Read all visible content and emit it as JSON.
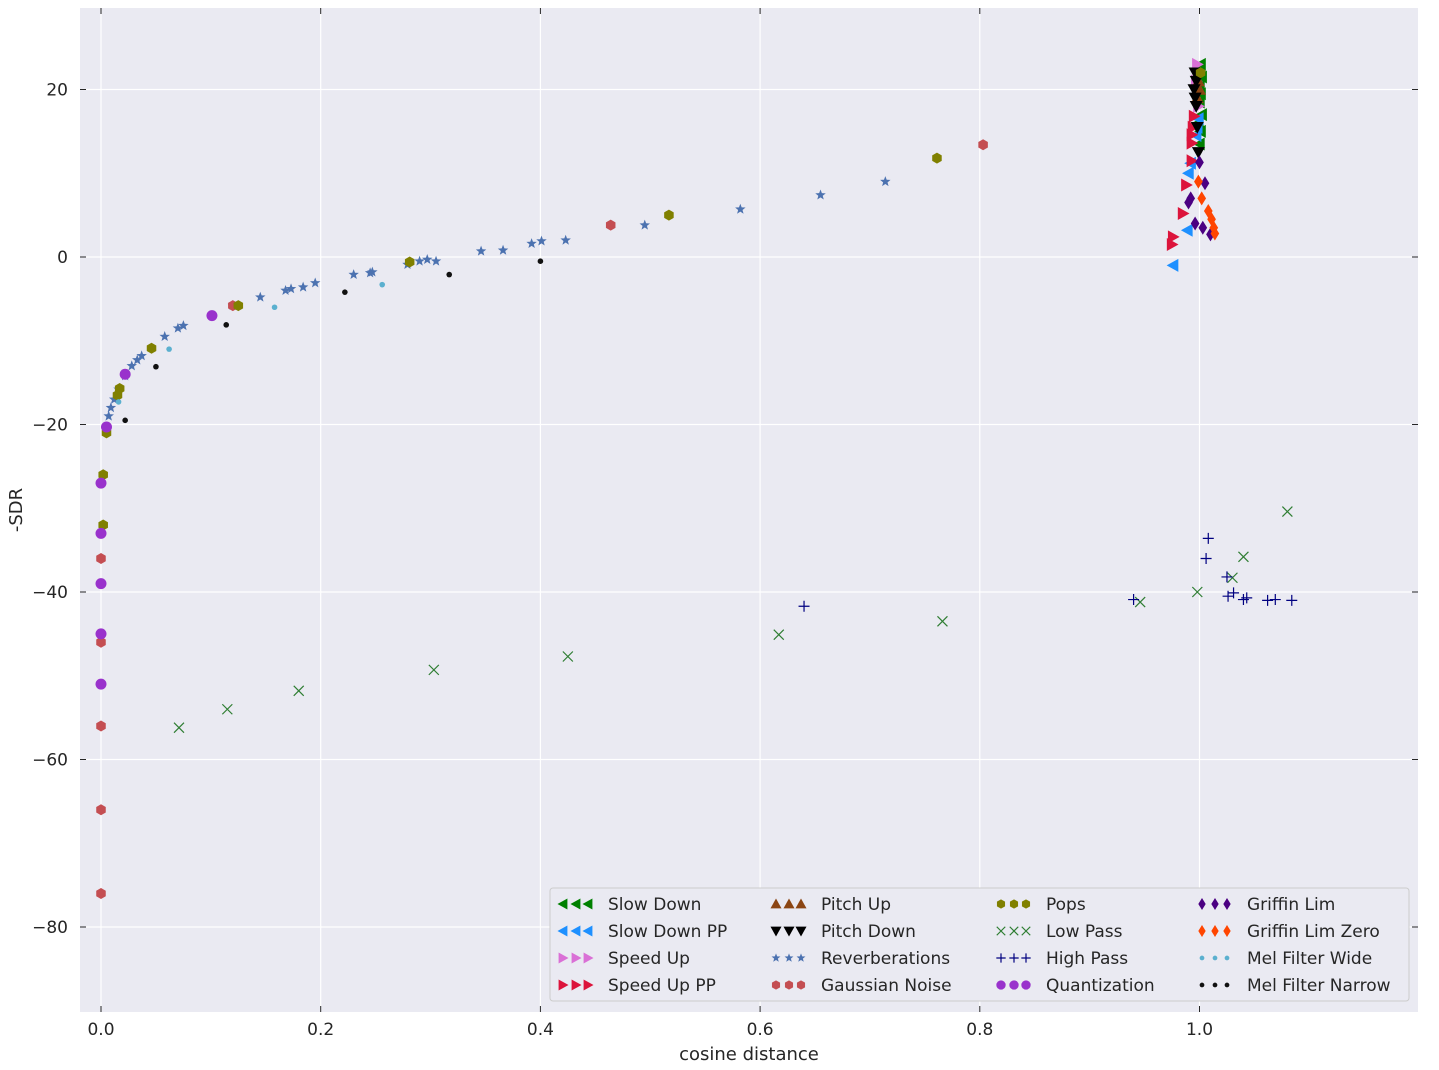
{
  "chart_data": {
    "type": "scatter",
    "xlabel": "cosine distance",
    "ylabel": "-SDR",
    "xlim": [
      -0.02,
      1.2
    ],
    "ylim": [
      -90,
      30
    ],
    "xticks": [
      0.0,
      0.2,
      0.4,
      0.6,
      0.8,
      1.0
    ],
    "xtick_labels": [
      "0.0",
      "0.2",
      "0.4",
      "0.6",
      "0.8",
      "1.0"
    ],
    "yticks": [
      20,
      0,
      -20,
      -40,
      -60,
      -80
    ],
    "ytick_labels": [
      "20",
      "0",
      "−20",
      "−40",
      "−60",
      "−80"
    ],
    "grid": true,
    "background_color": "#eaeaf2",
    "legend_position": "lower-right",
    "series": [
      {
        "name": "Slow Down",
        "marker": "triangle-left",
        "color": "#008000",
        "points": [
          [
            1.001,
            23
          ],
          [
            1.0,
            22.5
          ],
          [
            1.002,
            21.5
          ],
          [
            1.0,
            20.5
          ],
          [
            1.001,
            19.5
          ],
          [
            1.0,
            18.5
          ],
          [
            1.002,
            17
          ],
          [
            0.999,
            16
          ],
          [
            1.001,
            15
          ],
          [
            1.0,
            13.5
          ]
        ]
      },
      {
        "name": "Slow Down PP",
        "marker": "triangle-left",
        "color": "#1e90ff",
        "points": [
          [
            0.976,
            -1
          ],
          [
            0.989,
            3.2
          ],
          [
            0.99,
            10
          ],
          [
            0.992,
            11.2
          ],
          [
            0.997,
            14.5
          ],
          [
            0.998,
            15.5
          ],
          [
            0.999,
            16.5
          ]
        ]
      },
      {
        "name": "Speed Up",
        "marker": "triangle-right",
        "color": "#da70d6",
        "points": [
          [
            0.998,
            23
          ],
          [
            0.999,
            22
          ],
          [
            0.997,
            21
          ],
          [
            0.998,
            19.8
          ],
          [
            0.999,
            18
          ]
        ]
      },
      {
        "name": "Speed Up PP",
        "marker": "triangle-right",
        "color": "#dc143c",
        "points": [
          [
            0.975,
            1.5
          ],
          [
            0.976,
            2.4
          ],
          [
            0.985,
            5.2
          ],
          [
            0.988,
            8.6
          ],
          [
            0.993,
            11.5
          ],
          [
            0.993,
            13.6
          ],
          [
            0.993,
            14.6
          ],
          [
            0.994,
            15.5
          ],
          [
            0.995,
            16.8
          ]
        ]
      },
      {
        "name": "Pitch Up",
        "marker": "triangle-up",
        "color": "#8b4513",
        "points": [
          [
            0.999,
            21
          ],
          [
            1.0,
            20
          ],
          [
            0.998,
            19
          ]
        ]
      },
      {
        "name": "Pitch Down",
        "marker": "triangle-down",
        "color": "#000000",
        "points": [
          [
            0.996,
            22
          ],
          [
            0.997,
            21
          ],
          [
            0.995,
            20
          ],
          [
            0.996,
            19
          ],
          [
            0.997,
            18
          ],
          [
            0.998,
            15.5
          ],
          [
            0.999,
            12.5
          ]
        ]
      },
      {
        "name": "Reverberations",
        "marker": "star",
        "color": "#4c72b0",
        "points": [
          [
            0.007,
            -19
          ],
          [
            0.009,
            -18
          ],
          [
            0.012,
            -17
          ],
          [
            0.016,
            -15.8
          ],
          [
            0.022,
            -14.2
          ],
          [
            0.028,
            -13
          ],
          [
            0.033,
            -12.3
          ],
          [
            0.037,
            -11.8
          ],
          [
            0.058,
            -9.5
          ],
          [
            0.07,
            -8.5
          ],
          [
            0.075,
            -8.2
          ],
          [
            0.12,
            -5.8
          ],
          [
            0.145,
            -4.8
          ],
          [
            0.168,
            -4
          ],
          [
            0.173,
            -3.8
          ],
          [
            0.184,
            -3.6
          ],
          [
            0.195,
            -3.1
          ],
          [
            0.23,
            -2.1
          ],
          [
            0.245,
            -1.9
          ],
          [
            0.247,
            -1.8
          ],
          [
            0.279,
            -0.9
          ],
          [
            0.29,
            -0.5
          ],
          [
            0.297,
            -0.3
          ],
          [
            0.305,
            -0.5
          ],
          [
            0.346,
            0.7
          ],
          [
            0.366,
            0.8
          ],
          [
            0.392,
            1.6
          ],
          [
            0.401,
            1.9
          ],
          [
            0.423,
            2
          ],
          [
            0.495,
            3.8
          ],
          [
            0.582,
            5.7
          ],
          [
            0.655,
            7.4
          ],
          [
            0.714,
            9
          ]
        ]
      },
      {
        "name": "Gaussian Noise",
        "marker": "hexagon",
        "color": "#c44e52",
        "points": [
          [
            0.0,
            -76
          ],
          [
            0.0,
            -66
          ],
          [
            0.0,
            -56
          ],
          [
            0.0,
            -46
          ],
          [
            0.0,
            -36
          ],
          [
            0.12,
            -5.8
          ],
          [
            0.464,
            3.8
          ],
          [
            0.803,
            13.4
          ]
        ]
      },
      {
        "name": "Pops",
        "marker": "hexagon",
        "color": "#808000",
        "points": [
          [
            0.002,
            -32
          ],
          [
            0.002,
            -26
          ],
          [
            0.005,
            -21
          ],
          [
            0.015,
            -16.5
          ],
          [
            0.017,
            -15.7
          ],
          [
            0.046,
            -10.9
          ],
          [
            0.125,
            -5.8
          ],
          [
            0.281,
            -0.6
          ],
          [
            0.517,
            5
          ],
          [
            0.761,
            11.8
          ],
          [
            1.001,
            22
          ]
        ]
      },
      {
        "name": "Low Pass",
        "marker": "x",
        "color": "#2e7d32",
        "points": [
          [
            0.071,
            -56.2
          ],
          [
            0.115,
            -54
          ],
          [
            0.18,
            -51.8
          ],
          [
            0.303,
            -49.3
          ],
          [
            0.425,
            -47.7
          ],
          [
            0.617,
            -45.1
          ],
          [
            0.766,
            -43.5
          ],
          [
            0.946,
            -41.2
          ],
          [
            0.998,
            -40
          ],
          [
            1.03,
            -38.3
          ],
          [
            1.04,
            -35.8
          ],
          [
            1.08,
            -30.4
          ]
        ]
      },
      {
        "name": "High Pass",
        "marker": "plus",
        "color": "#000080",
        "points": [
          [
            0.64,
            -41.7
          ],
          [
            0.94,
            -40.9
          ],
          [
            1.006,
            -36
          ],
          [
            1.008,
            -33.6
          ],
          [
            1.025,
            -38.2
          ],
          [
            1.026,
            -40.5
          ],
          [
            1.031,
            -40.1
          ],
          [
            1.04,
            -40.9
          ],
          [
            1.043,
            -40.7
          ],
          [
            1.062,
            -41
          ],
          [
            1.069,
            -40.9
          ],
          [
            1.084,
            -41
          ]
        ]
      },
      {
        "name": "Quantization",
        "marker": "circle",
        "color": "#9932cc",
        "points": [
          [
            0.0,
            -51
          ],
          [
            0.0,
            -45
          ],
          [
            0.0,
            -39
          ],
          [
            0.0,
            -33
          ],
          [
            0.0,
            -27
          ],
          [
            0.005,
            -20.3
          ],
          [
            0.022,
            -14
          ],
          [
            0.101,
            -7
          ]
        ]
      },
      {
        "name": "Griffin Lim",
        "marker": "diamond",
        "color": "#4b0082",
        "points": [
          [
            0.99,
            6.5
          ],
          [
            0.992,
            7
          ],
          [
            1.0,
            11.3
          ],
          [
            1.003,
            3.5
          ],
          [
            1.005,
            8.8
          ],
          [
            1.01,
            2.7
          ],
          [
            0.996,
            4
          ]
        ]
      },
      {
        "name": "Griffin Lim Zero",
        "marker": "diamond",
        "color": "#ff4500",
        "points": [
          [
            0.999,
            9
          ],
          [
            1.002,
            7
          ],
          [
            1.008,
            5.5
          ],
          [
            1.011,
            4.5
          ],
          [
            1.013,
            3.5
          ],
          [
            1.014,
            2.8
          ]
        ]
      },
      {
        "name": "Mel Filter Wide",
        "marker": "point",
        "color": "#5bb0cf",
        "points": [
          [
            0.016,
            -17.3
          ],
          [
            0.062,
            -11
          ],
          [
            0.158,
            -6
          ],
          [
            0.256,
            -3.3
          ]
        ]
      },
      {
        "name": "Mel Filter Narrow",
        "marker": "point",
        "color": "#111111",
        "points": [
          [
            0.022,
            -19.5
          ],
          [
            0.05,
            -13.1
          ],
          [
            0.114,
            -8.1
          ],
          [
            0.222,
            -4.2
          ],
          [
            0.317,
            -2.1
          ],
          [
            0.4,
            -0.5
          ]
        ]
      }
    ]
  }
}
